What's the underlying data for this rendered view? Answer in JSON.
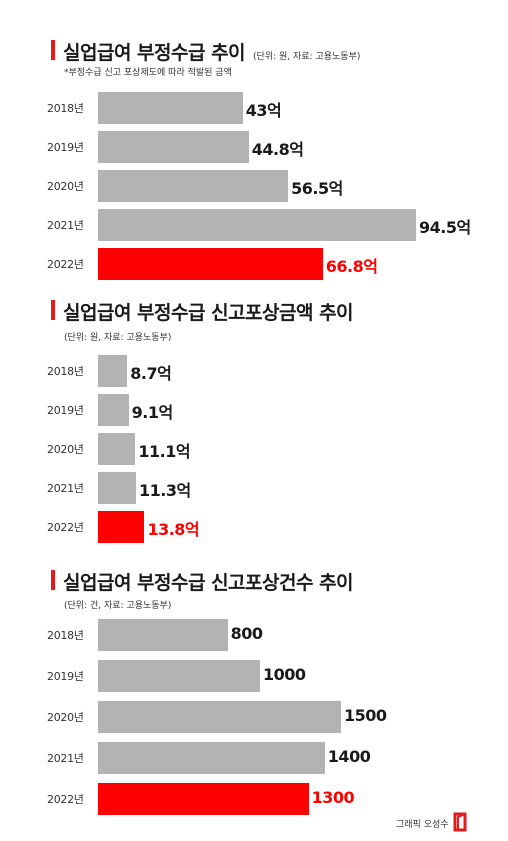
{
  "theme": {
    "bar_color": "#b3b3b3",
    "highlight_color": "#ff0000",
    "accent_color": "#e31b1b"
  },
  "charts": [
    {
      "title": "실업급여 부정수급 추이",
      "source": "(단위: 원, 자료: 고용노동부)",
      "subtitle": "*부정수급 신고 포상제도에 따라 적발된 금액"
    },
    {
      "title": "실업급여 부정수급 신고포상금액 추이",
      "source": "(단위: 원, 자료: 고용노동부)",
      "subtitle": ""
    },
    {
      "title": "실업급여 부정수급 신고포상건수 추이",
      "source": "(단위: 건, 자료: 고용노동부)",
      "subtitle": ""
    }
  ],
  "chart_data": [
    {
      "type": "bar",
      "orientation": "horizontal",
      "title": "실업급여 부정수급 추이",
      "categories": [
        "2018년",
        "2019년",
        "2020년",
        "2021년",
        "2022년"
      ],
      "values": [
        43,
        44.8,
        56.5,
        94.5,
        66.8
      ],
      "labels": [
        "43억",
        "44.8억",
        "56.5억",
        "94.5억",
        "66.8억"
      ],
      "highlight_index": 4,
      "xlim": [
        0,
        100
      ]
    },
    {
      "type": "bar",
      "orientation": "horizontal",
      "title": "실업급여 부정수급 신고포상금액 추이",
      "categories": [
        "2018년",
        "2019년",
        "2020년",
        "2021년",
        "2022년"
      ],
      "values": [
        8.7,
        9.1,
        11.1,
        11.3,
        13.8
      ],
      "labels": [
        "8.7억",
        "9.1억",
        "11.1억",
        "11.3억",
        "13.8억"
      ],
      "highlight_index": 4,
      "xlim": [
        0,
        100
      ]
    },
    {
      "type": "bar",
      "orientation": "horizontal",
      "title": "실업급여 부정수급 신고포상건수 추이",
      "categories": [
        "2018년",
        "2019년",
        "2020년",
        "2021년",
        "2022년"
      ],
      "values": [
        800,
        1000,
        1500,
        1400,
        1300
      ],
      "labels": [
        "800",
        "1000",
        "1500",
        "1400",
        "1300"
      ],
      "highlight_index": 4,
      "xlim": [
        0,
        2000
      ]
    }
  ],
  "credit": "그래픽 오성수"
}
